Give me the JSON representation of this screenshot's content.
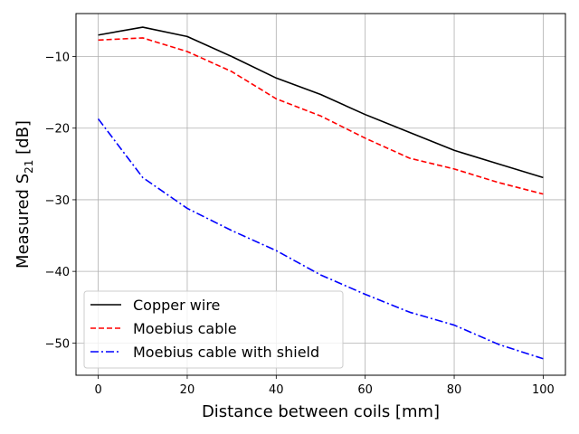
{
  "chart_data": {
    "type": "line",
    "title": "",
    "xlabel": "Distance between coils [mm]",
    "ylabel": {
      "prefix": "Measured S",
      "subscript": "21",
      "suffix": " [dB]"
    },
    "xlim": [
      -5,
      105
    ],
    "ylim": [
      -54.5,
      -4
    ],
    "xticks": [
      0,
      20,
      40,
      60,
      80,
      100
    ],
    "xtick_labels": [
      "0",
      "20",
      "40",
      "60",
      "80",
      "100"
    ],
    "yticks": [
      -10,
      -20,
      -30,
      -40,
      -50
    ],
    "ytick_labels": [
      "−10",
      "−20",
      "−30",
      "−40",
      "−50"
    ],
    "grid": true,
    "legend_position": "lower-left",
    "x": [
      0,
      10,
      20,
      30,
      40,
      50,
      60,
      70,
      80,
      90,
      100
    ],
    "series": [
      {
        "name": "Copper wire",
        "color": "#000000",
        "style": "solid",
        "values": [
          -7.0,
          -5.9,
          -7.2,
          -10.0,
          -13.0,
          -15.3,
          -18.1,
          -20.6,
          -23.1,
          -25.0,
          -26.9
        ]
      },
      {
        "name": "Moebius cable",
        "color": "#ff0000",
        "style": "dashed",
        "values": [
          -7.7,
          -7.4,
          -9.3,
          -12.1,
          -15.9,
          -18.3,
          -21.4,
          -24.2,
          -25.7,
          -27.6,
          -29.2
        ]
      },
      {
        "name": "Moebius cable with shield",
        "color": "#0000ff",
        "style": "dashdot",
        "values": [
          -18.7,
          -26.9,
          -31.2,
          -34.3,
          -37.1,
          -40.5,
          -43.2,
          -45.7,
          -47.5,
          -50.2,
          -52.2
        ]
      }
    ]
  }
}
